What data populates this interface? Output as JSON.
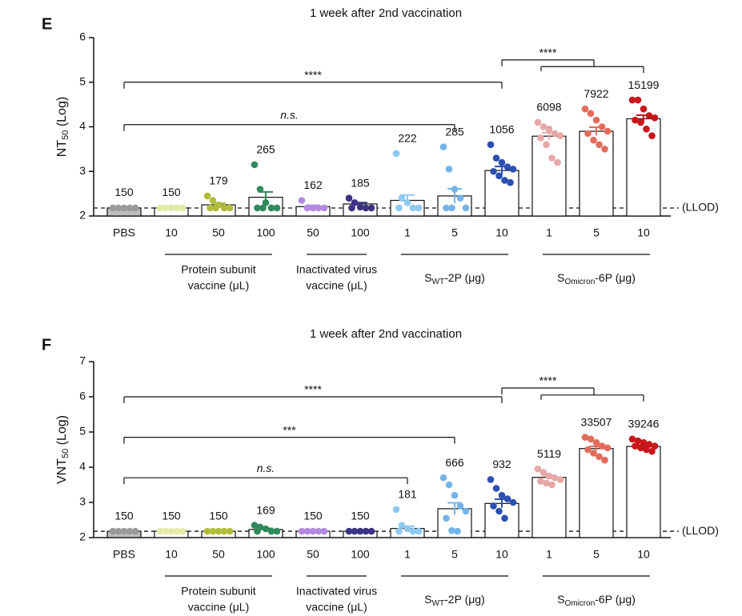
{
  "chart_data": [
    {
      "type": "bar",
      "panel": "E",
      "title": "1 week after 2nd vaccination",
      "y_label": {
        "pre": "NT",
        "sub": "50",
        "post": " (Log)"
      },
      "categories": [
        "PBS",
        "10",
        "50",
        "100",
        "50",
        "100",
        "1",
        "5",
        "10",
        "1",
        "5",
        "10"
      ],
      "colors": [
        "#9a9a9a",
        "#e3eaa8",
        "#b3bd3c",
        "#2f8a5c",
        "#b48ae0",
        "#3b3283",
        "#8ec9f0",
        "#74b4ea",
        "#2d4fb3",
        "#e7a7a7",
        "#e36b5c",
        "#c8161b"
      ],
      "values": [
        2.18,
        2.18,
        2.25,
        2.42,
        2.21,
        2.27,
        2.35,
        2.45,
        3.02,
        3.79,
        3.9,
        4.18
      ],
      "value_labels": [
        "150",
        "150",
        "179",
        "265",
        "162",
        "185",
        "222",
        "285",
        "1056",
        "6098",
        "7922",
        "15199"
      ],
      "errors": [
        0.01,
        0.01,
        0.04,
        0.12,
        0.03,
        0.03,
        0.12,
        0.16,
        0.09,
        0.08,
        0.09,
        0.08
      ],
      "points": [
        [
          2.18,
          2.18,
          2.18,
          2.18,
          2.18
        ],
        [
          2.18,
          2.18,
          2.18,
          2.18,
          2.18
        ],
        [
          2.45,
          2.35,
          2.25,
          2.18,
          2.18,
          2.18,
          2.18
        ],
        [
          3.15,
          2.6,
          2.3,
          2.18,
          2.18,
          2.18,
          2.18
        ],
        [
          2.35,
          2.18,
          2.18,
          2.18,
          2.18
        ],
        [
          2.4,
          2.3,
          2.2,
          2.18,
          2.18,
          2.18
        ],
        [
          3.4,
          2.4,
          2.3,
          2.18,
          2.18,
          2.18
        ],
        [
          3.55,
          3.05,
          2.6,
          2.4,
          2.18,
          2.18,
          2.18
        ],
        [
          3.6,
          3.3,
          3.2,
          3.1,
          3.05,
          3.0,
          2.9,
          2.8,
          2.75
        ],
        [
          4.1,
          4.0,
          3.95,
          3.85,
          3.8,
          3.75,
          3.6,
          3.3,
          3.2
        ],
        [
          4.4,
          4.3,
          4.15,
          4.0,
          3.9,
          3.85,
          3.7,
          3.6,
          3.5
        ],
        [
          4.6,
          4.6,
          4.4,
          4.25,
          4.2,
          4.15,
          4.1,
          3.95,
          3.8
        ]
      ],
      "ylim": [
        2,
        6
      ],
      "yticks": [
        2,
        3,
        4,
        5,
        6
      ],
      "llod": {
        "value": 2.18,
        "label": "(LLOD)"
      },
      "groups": [
        {
          "from": 1,
          "to": 3,
          "lines": [
            "Protein subunit",
            "vaccine (μL)"
          ]
        },
        {
          "from": 4,
          "to": 5,
          "lines": [
            "Inactivated virus",
            "vaccine (μL)"
          ]
        },
        {
          "from": 6,
          "to": 8,
          "label": {
            "pre": "S",
            "sub": "WT",
            "post": "-2P (μg)"
          }
        },
        {
          "from": 9,
          "to": 11,
          "label": {
            "pre": "S",
            "sub": "Omicron",
            "post": "-6P (μg)"
          }
        }
      ],
      "comparisons": [
        {
          "label": "****",
          "from": 0,
          "to": 8,
          "y": 5.0
        },
        {
          "label": "n.s.",
          "from": 0,
          "to": 7,
          "y": 4.05
        },
        {
          "label": "****",
          "from": 8,
          "to": 10,
          "y": 5.5,
          "group_from": 9,
          "group_to": 11,
          "group_y": 5.35
        }
      ]
    },
    {
      "type": "bar",
      "panel": "F",
      "title": "1 week after 2nd vaccination",
      "y_label": {
        "pre": "VNT",
        "sub": "50",
        "post": " (Log)"
      },
      "categories": [
        "PBS",
        "10",
        "50",
        "100",
        "50",
        "100",
        "1",
        "5",
        "10",
        "1",
        "5",
        "10"
      ],
      "colors": [
        "#9a9a9a",
        "#e3eaa8",
        "#b3bd3c",
        "#2f8a5c",
        "#b48ae0",
        "#3b3283",
        "#8ec9f0",
        "#74b4ea",
        "#2d4fb3",
        "#e7a7a7",
        "#e36b5c",
        "#c8161b"
      ],
      "values": [
        2.18,
        2.18,
        2.18,
        2.23,
        2.18,
        2.18,
        2.26,
        2.82,
        2.97,
        3.71,
        4.53,
        4.59
      ],
      "value_labels": [
        "150",
        "150",
        "150",
        "169",
        "150",
        "150",
        "181",
        "666",
        "932",
        "5119",
        "33507",
        "39246"
      ],
      "errors": [
        0.01,
        0.01,
        0.01,
        0.03,
        0.01,
        0.01,
        0.06,
        0.17,
        0.12,
        0.05,
        0.06,
        0.04
      ],
      "points": [
        [
          2.18,
          2.18,
          2.18,
          2.18,
          2.18
        ],
        [
          2.18,
          2.18,
          2.18,
          2.18,
          2.18
        ],
        [
          2.18,
          2.18,
          2.18,
          2.18,
          2.18
        ],
        [
          2.35,
          2.3,
          2.25,
          2.18,
          2.18,
          2.18
        ],
        [
          2.18,
          2.18,
          2.18,
          2.18,
          2.18
        ],
        [
          2.18,
          2.18,
          2.18,
          2.18,
          2.18
        ],
        [
          2.8,
          2.35,
          2.25,
          2.18,
          2.18,
          2.18
        ],
        [
          3.7,
          3.5,
          3.2,
          2.9,
          2.75,
          2.55,
          2.2,
          2.18
        ],
        [
          3.65,
          3.4,
          3.2,
          3.1,
          3.0,
          2.9,
          2.75,
          2.55
        ],
        [
          3.95,
          3.85,
          3.75,
          3.7,
          3.65,
          3.6,
          3.55,
          3.5
        ],
        [
          4.85,
          4.8,
          4.7,
          4.6,
          4.55,
          4.5,
          4.4,
          4.3,
          4.2
        ],
        [
          4.8,
          4.75,
          4.7,
          4.65,
          4.6,
          4.6,
          4.55,
          4.5,
          4.45
        ]
      ],
      "ylim": [
        2,
        7
      ],
      "yticks": [
        2,
        3,
        4,
        5,
        6,
        7
      ],
      "llod": {
        "value": 2.18,
        "label": "(LLOD)"
      },
      "groups": [
        {
          "from": 1,
          "to": 3,
          "lines": [
            "Protein subunit",
            "vaccine (μL)"
          ]
        },
        {
          "from": 4,
          "to": 5,
          "lines": [
            "Inactivated virus",
            "vaccine (μL)"
          ]
        },
        {
          "from": 6,
          "to": 8,
          "label": {
            "pre": "S",
            "sub": "WT",
            "post": "-2P (μg)"
          }
        },
        {
          "from": 9,
          "to": 11,
          "label": {
            "pre": "S",
            "sub": "Omicron",
            "post": "-6P (μg)"
          }
        }
      ],
      "comparisons": [
        {
          "label": "****",
          "from": 0,
          "to": 8,
          "y": 6.0
        },
        {
          "label": "***",
          "from": 0,
          "to": 7,
          "y": 4.85
        },
        {
          "label": "n.s.",
          "from": 0,
          "to": 6,
          "y": 3.7
        },
        {
          "label": "****",
          "from": 8,
          "to": 10,
          "y": 6.25,
          "group_from": 9,
          "group_to": 11,
          "group_y": 6.05
        }
      ]
    }
  ]
}
